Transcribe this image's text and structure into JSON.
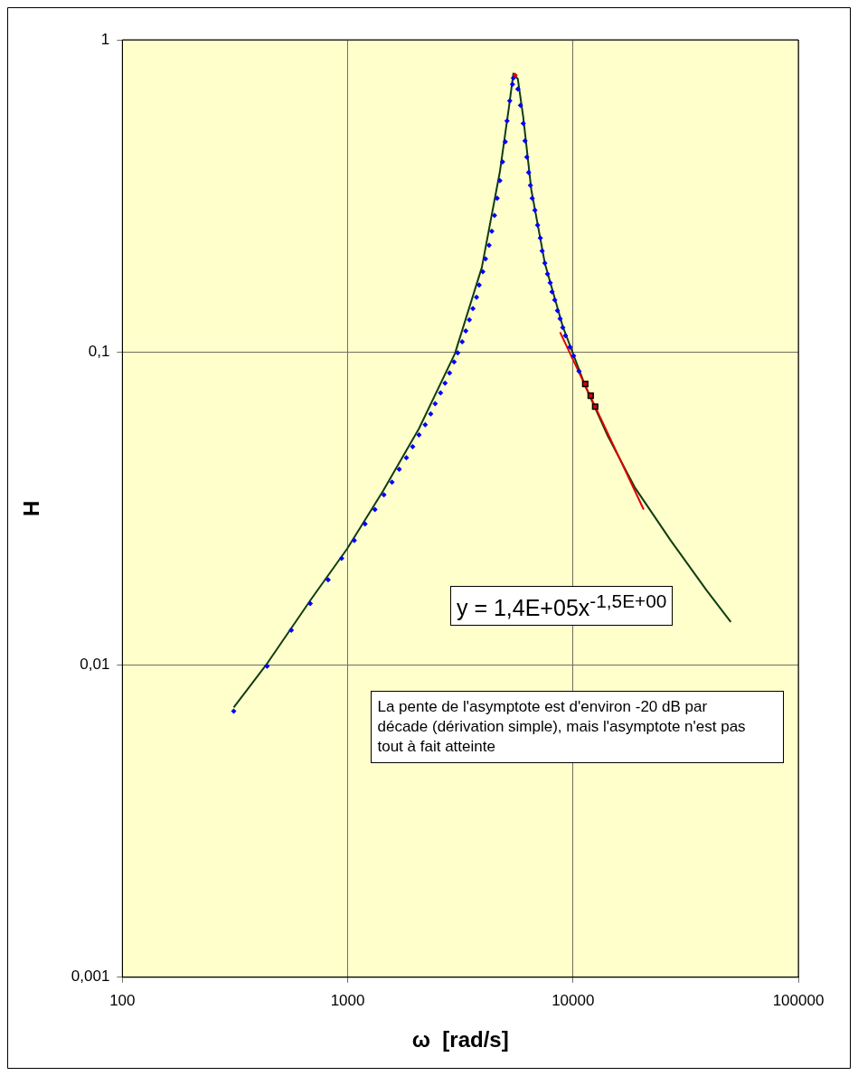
{
  "chart_data": {
    "type": "scatter",
    "xlabel": "ω  [rad/s]",
    "ylabel": "H",
    "log": "xy",
    "grid": true,
    "legend": false,
    "xlim": [
      100,
      100000
    ],
    "xticks": [
      100,
      1000,
      10000,
      100000
    ],
    "ylim": [
      0.001,
      1
    ],
    "yticks": [
      {
        "value": 0.001,
        "label": "0,001"
      },
      {
        "value": 0.01,
        "label": "0,01"
      },
      {
        "value": 0.1,
        "label": "0,1"
      },
      {
        "value": 1,
        "label": "1"
      }
    ],
    "series": [
      {
        "type": "line",
        "color": "#0f3d0f",
        "marker": "none",
        "line_style": "solid",
        "x": [
          312,
          435,
          688,
          994,
          1435,
          2072,
          2991,
          3940,
          4735,
          5191,
          5436,
          5690,
          6013,
          6531,
          7497,
          9006,
          11330,
          14260,
          18780,
          27120,
          39160,
          50150
        ],
        "values": [
          0.0073,
          0.01,
          0.0162,
          0.0235,
          0.036,
          0.057,
          0.099,
          0.187,
          0.378,
          0.605,
          0.78,
          0.749,
          0.566,
          0.331,
          0.193,
          0.121,
          0.078,
          0.054,
          0.037,
          0.025,
          0.0173,
          0.0137
        ]
      },
      {
        "type": "scatter",
        "color": "#0000ff",
        "marker": "diamond",
        "x": [
          312,
          439,
          562,
          682,
          819,
          940,
          1070,
          1194,
          1321,
          1448,
          1573,
          1693,
          1822,
          1943,
          2072,
          2209,
          2336,
          2445,
          2584,
          2705,
          2833,
          2966,
          3078,
          3222,
          3342,
          3467,
          3596,
          3730,
          3834,
          3978,
          4090,
          4241,
          4360,
          4482,
          4607,
          4736,
          4868,
          5004,
          5097,
          5240,
          5386,
          5436,
          5690,
          5848,
          6013,
          6124,
          6237,
          6353,
          6471,
          6591,
          6775,
          6965,
          7160,
          7293,
          7497,
          7707,
          7922,
          8069,
          8295,
          8527,
          8765,
          9006,
          9258,
          9694,
          10060,
          10630
        ],
        "values": [
          0.0071,
          0.0099,
          0.0129,
          0.0157,
          0.0187,
          0.0219,
          0.025,
          0.0282,
          0.0314,
          0.035,
          0.0384,
          0.0422,
          0.046,
          0.0499,
          0.0544,
          0.0586,
          0.0635,
          0.0684,
          0.0741,
          0.0797,
          0.0859,
          0.0931,
          0.0995,
          0.108,
          0.117,
          0.127,
          0.138,
          0.15,
          0.164,
          0.181,
          0.199,
          0.22,
          0.244,
          0.274,
          0.311,
          0.354,
          0.407,
          0.472,
          0.55,
          0.638,
          0.72,
          0.755,
          0.696,
          0.617,
          0.54,
          0.475,
          0.421,
          0.376,
          0.342,
          0.311,
          0.285,
          0.255,
          0.232,
          0.211,
          0.193,
          0.178,
          0.167,
          0.156,
          0.147,
          0.136,
          0.128,
          0.12,
          0.113,
          0.104,
          0.0975,
          0.087
        ]
      },
      {
        "type": "scatter",
        "color": "#e00000",
        "marker": "square",
        "x": [
          11330,
          11980,
          12540
        ],
        "values": [
          0.0792,
          0.0726,
          0.067
        ]
      },
      {
        "type": "scatter",
        "color": "#e00000",
        "marker": "diamond",
        "x": [
          5534
        ],
        "values": [
          0.77
        ]
      },
      {
        "type": "line",
        "color": "#e00000",
        "marker": "none",
        "line_style": "solid",
        "x": [
          8760,
          20590
        ],
        "values": [
          0.116,
          0.0314
        ]
      }
    ],
    "annotations": [
      "y = 1,4E+05x$^{-1,5E+00}$",
      "La pente de l'asymptote est d'environ -20 dB par décade (dérivation simple), mais l'asymptote n'est pas tout à fait atteinte"
    ]
  }
}
